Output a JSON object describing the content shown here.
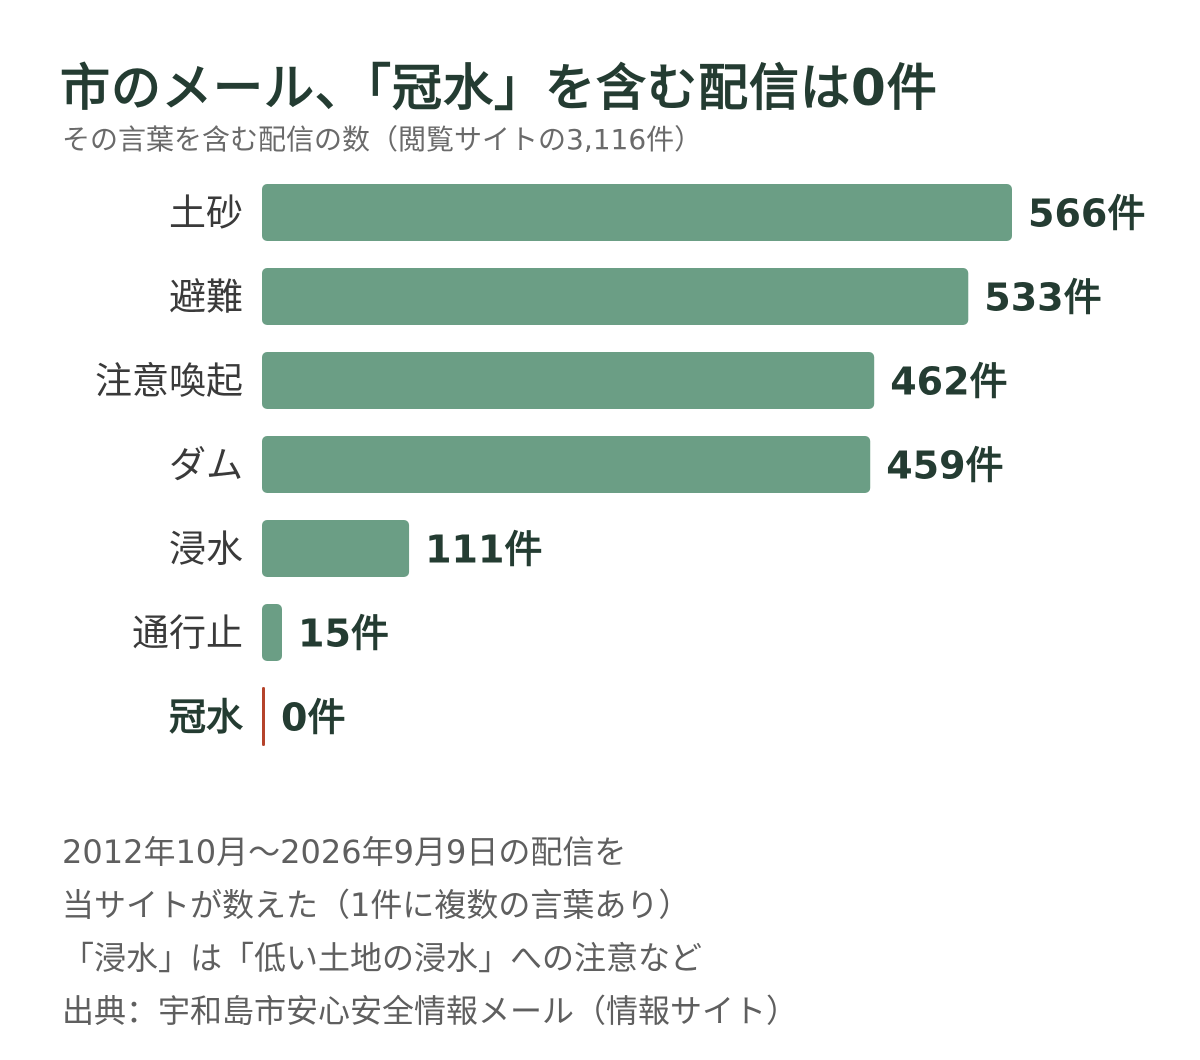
{
  "title": "市のメール、「冠水」を含む配信は0件",
  "subtitle": "その言葉を含む配信の数（閲覧サイトの3,116件）",
  "notes": [
    "2012年10月〜2026年9月9日の配信を",
    "当サイトが数えた（1件に複数の言葉あり）",
    "「浸水」は「低い土地の浸水」への注意など",
    "出典：宇和島市安心安全情報メール（情報サイト）"
  ],
  "colors": {
    "bar": "#6b9e85",
    "highlight": "#b5432b"
  },
  "chart_data": {
    "type": "bar",
    "orientation": "horizontal",
    "categories": [
      "土砂",
      "避難",
      "注意喚起",
      "ダム",
      "浸水",
      "通行止",
      "冠水"
    ],
    "values": [
      566,
      533,
      462,
      459,
      111,
      15,
      0
    ],
    "value_labels": [
      "566件",
      "533件",
      "462件",
      "459件",
      "111件",
      "15件",
      "0件"
    ],
    "highlight_category": "冠水",
    "xlim": [
      0,
      566
    ],
    "grid": false,
    "legend": "none"
  }
}
